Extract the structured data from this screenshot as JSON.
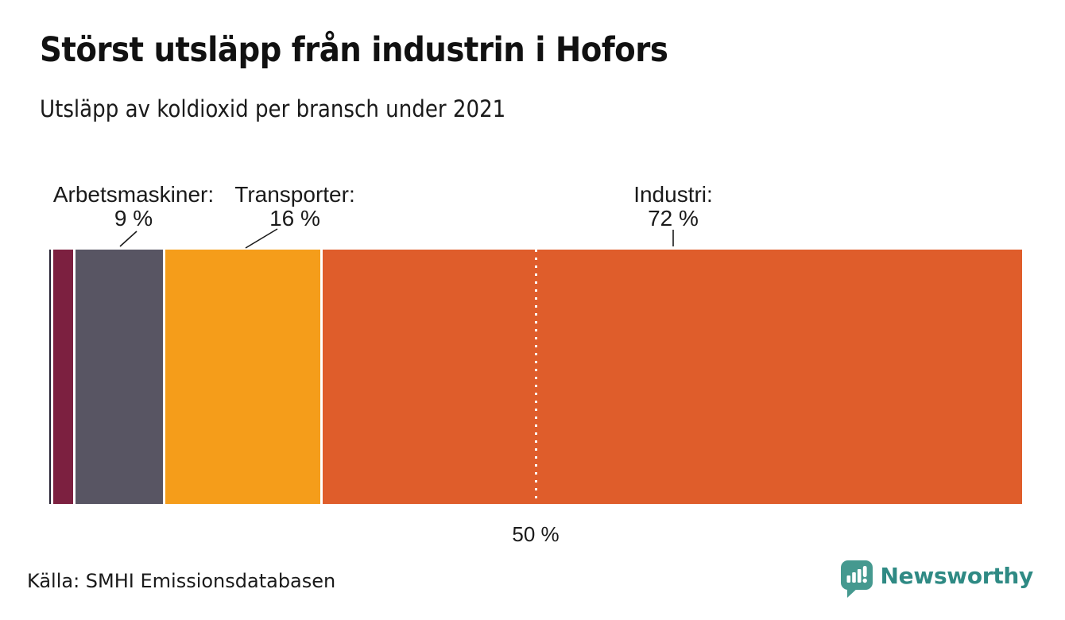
{
  "header": {
    "title": "Störst utsläpp från industrin i Hofors",
    "subtitle": "Utsläpp av koldioxid per bransch under 2021"
  },
  "chart_data": {
    "type": "bar",
    "variant": "horizontal-stacked-100-percent",
    "title": "Utsläpp av koldioxid per bransch under 2021",
    "unit": "%",
    "xlim": [
      0,
      100
    ],
    "segments": [
      {
        "label": "",
        "value": 0.2,
        "color": "#262233"
      },
      {
        "label": "",
        "value": 2,
        "color": "#7c2040"
      },
      {
        "label": "Arbetsmaskiner",
        "value": 9,
        "color": "#585563"
      },
      {
        "label": "Transporter",
        "value": 16,
        "color": "#f59d1a"
      },
      {
        "label": "Industri",
        "value": 72,
        "color": "#df5d2b"
      }
    ],
    "callouts": [
      {
        "name": "Arbetsmaskiner:",
        "value": "9 %"
      },
      {
        "name": "Transporter:",
        "value": "16 %"
      },
      {
        "name": "Industri:",
        "value": "72 %"
      }
    ],
    "reference_line": {
      "value": 50,
      "label": "50 %",
      "style": "dotted-white"
    },
    "legend_position": "none",
    "grid": false
  },
  "footer": {
    "source": "Källa: SMHI Emissionsdatabasen",
    "brand_name": "Newsworthy",
    "brand_color": "#2f8a84",
    "brand_icon_color": "#45998f"
  }
}
